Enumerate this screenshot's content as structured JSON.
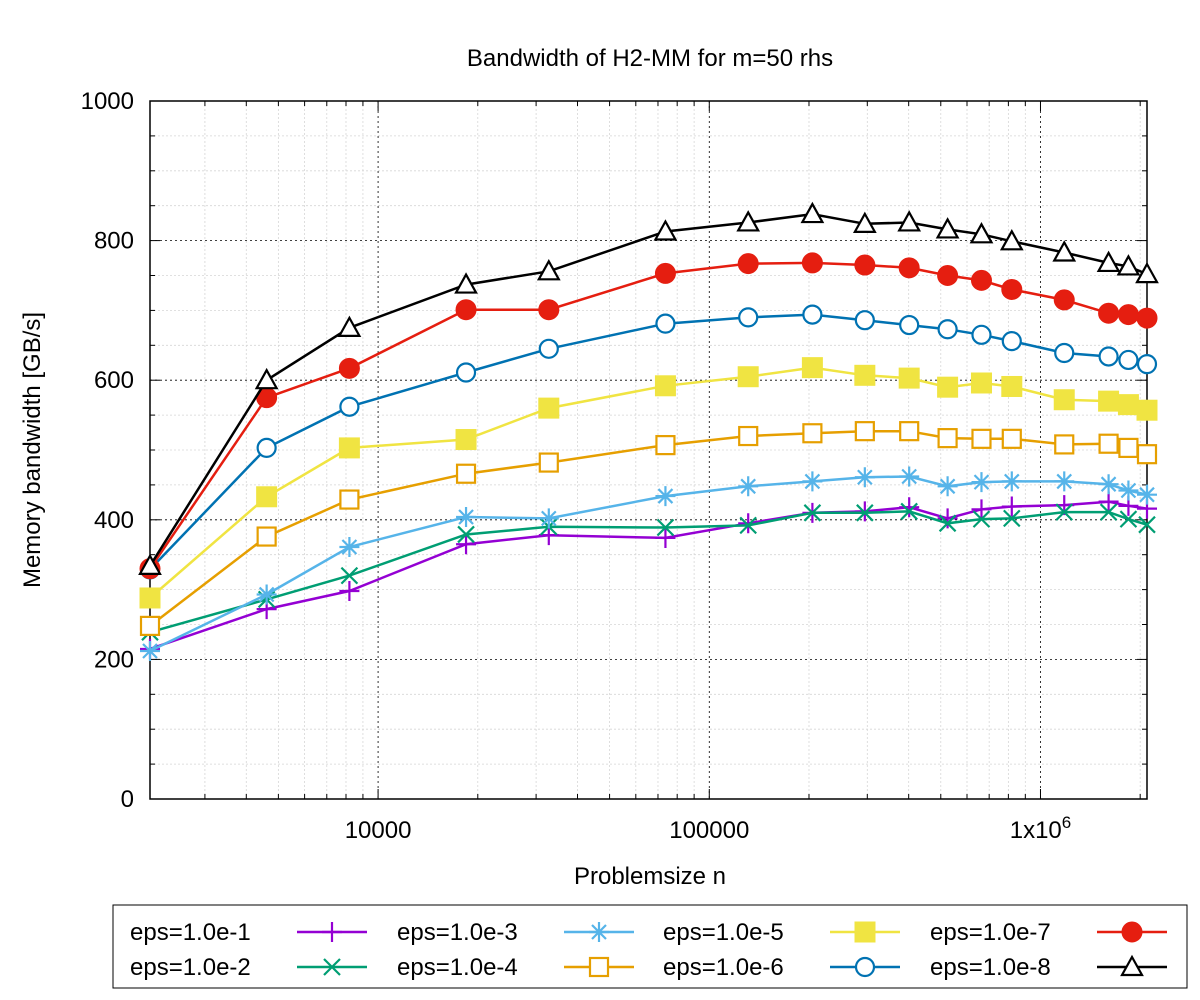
{
  "chart_data": {
    "type": "line",
    "title": "Bandwidth of H2-MM for m=50 rhs",
    "xlabel": "Problemsize n",
    "ylabel": "Memory bandwidth [GB/s]",
    "xscale": "log",
    "xlim": [
      2048,
      2097152
    ],
    "ylim": [
      0,
      1000
    ],
    "grid": true,
    "legend_position": "bottom",
    "yticks": [
      {
        "value": 0,
        "label": "0"
      },
      {
        "value": 200,
        "label": "200"
      },
      {
        "value": 400,
        "label": "400"
      },
      {
        "value": 600,
        "label": "600"
      },
      {
        "value": 800,
        "label": "800"
      },
      {
        "value": 1000,
        "label": "1000"
      }
    ],
    "xticks": [
      {
        "value": 10000,
        "label": "10000"
      },
      {
        "value": 100000,
        "label": "100000"
      },
      {
        "value": 1000000,
        "label": "1x10",
        "sup": "6"
      }
    ],
    "x": [
      2048,
      4608,
      8192,
      18432,
      32768,
      73728,
      131072,
      204800,
      294912,
      401408,
      524288,
      663552,
      819200,
      1179648,
      1605632,
      1843200,
      2097152
    ],
    "series": [
      {
        "name": "eps=1.0e-1",
        "color": "#9400d3",
        "marker": "plus",
        "values": [
          215,
          272,
          298,
          365,
          378,
          374,
          395,
          410,
          412,
          418,
          402,
          415,
          419,
          421,
          426,
          420,
          416
        ]
      },
      {
        "name": "eps=1.0e-2",
        "color": "#009e73",
        "marker": "cross",
        "values": [
          239,
          286,
          320,
          379,
          390,
          389,
          392,
          410,
          410,
          412,
          395,
          401,
          402,
          411,
          411,
          401,
          393
        ]
      },
      {
        "name": "eps=1.0e-3",
        "color": "#56b4e9",
        "marker": "star",
        "values": [
          212,
          293,
          361,
          404,
          402,
          434,
          448,
          455,
          461,
          462,
          448,
          454,
          455,
          455,
          451,
          442,
          436
        ]
      },
      {
        "name": "eps=1.0e-4",
        "color": "#e69f00",
        "marker": "open-square",
        "values": [
          248,
          376,
          429,
          466,
          482,
          507,
          520,
          524,
          527,
          527,
          517,
          516,
          516,
          508,
          509,
          503,
          494
        ]
      },
      {
        "name": "eps=1.0e-5",
        "color": "#f0e442",
        "marker": "filled-square",
        "values": [
          288,
          433,
          503,
          515,
          560,
          592,
          605,
          618,
          607,
          603,
          590,
          596,
          591,
          572,
          570,
          565,
          557
        ]
      },
      {
        "name": "eps=1.0e-6",
        "color": "#0072b2",
        "marker": "open-circle",
        "values": [
          329,
          503,
          562,
          611,
          645,
          681,
          690,
          694,
          686,
          679,
          673,
          665,
          656,
          639,
          634,
          629,
          623
        ]
      },
      {
        "name": "eps=1.0e-7",
        "color": "#e51e10",
        "marker": "filled-circle",
        "values": [
          330,
          575,
          617,
          701,
          701,
          753,
          767,
          768,
          765,
          761,
          750,
          743,
          730,
          715,
          696,
          694,
          689
        ]
      },
      {
        "name": "eps=1.0e-8",
        "color": "#000000",
        "marker": "open-triangle",
        "values": [
          334,
          600,
          675,
          737,
          756,
          813,
          826,
          838,
          824,
          826,
          816,
          809,
          799,
          783,
          768,
          763,
          752
        ]
      }
    ]
  }
}
